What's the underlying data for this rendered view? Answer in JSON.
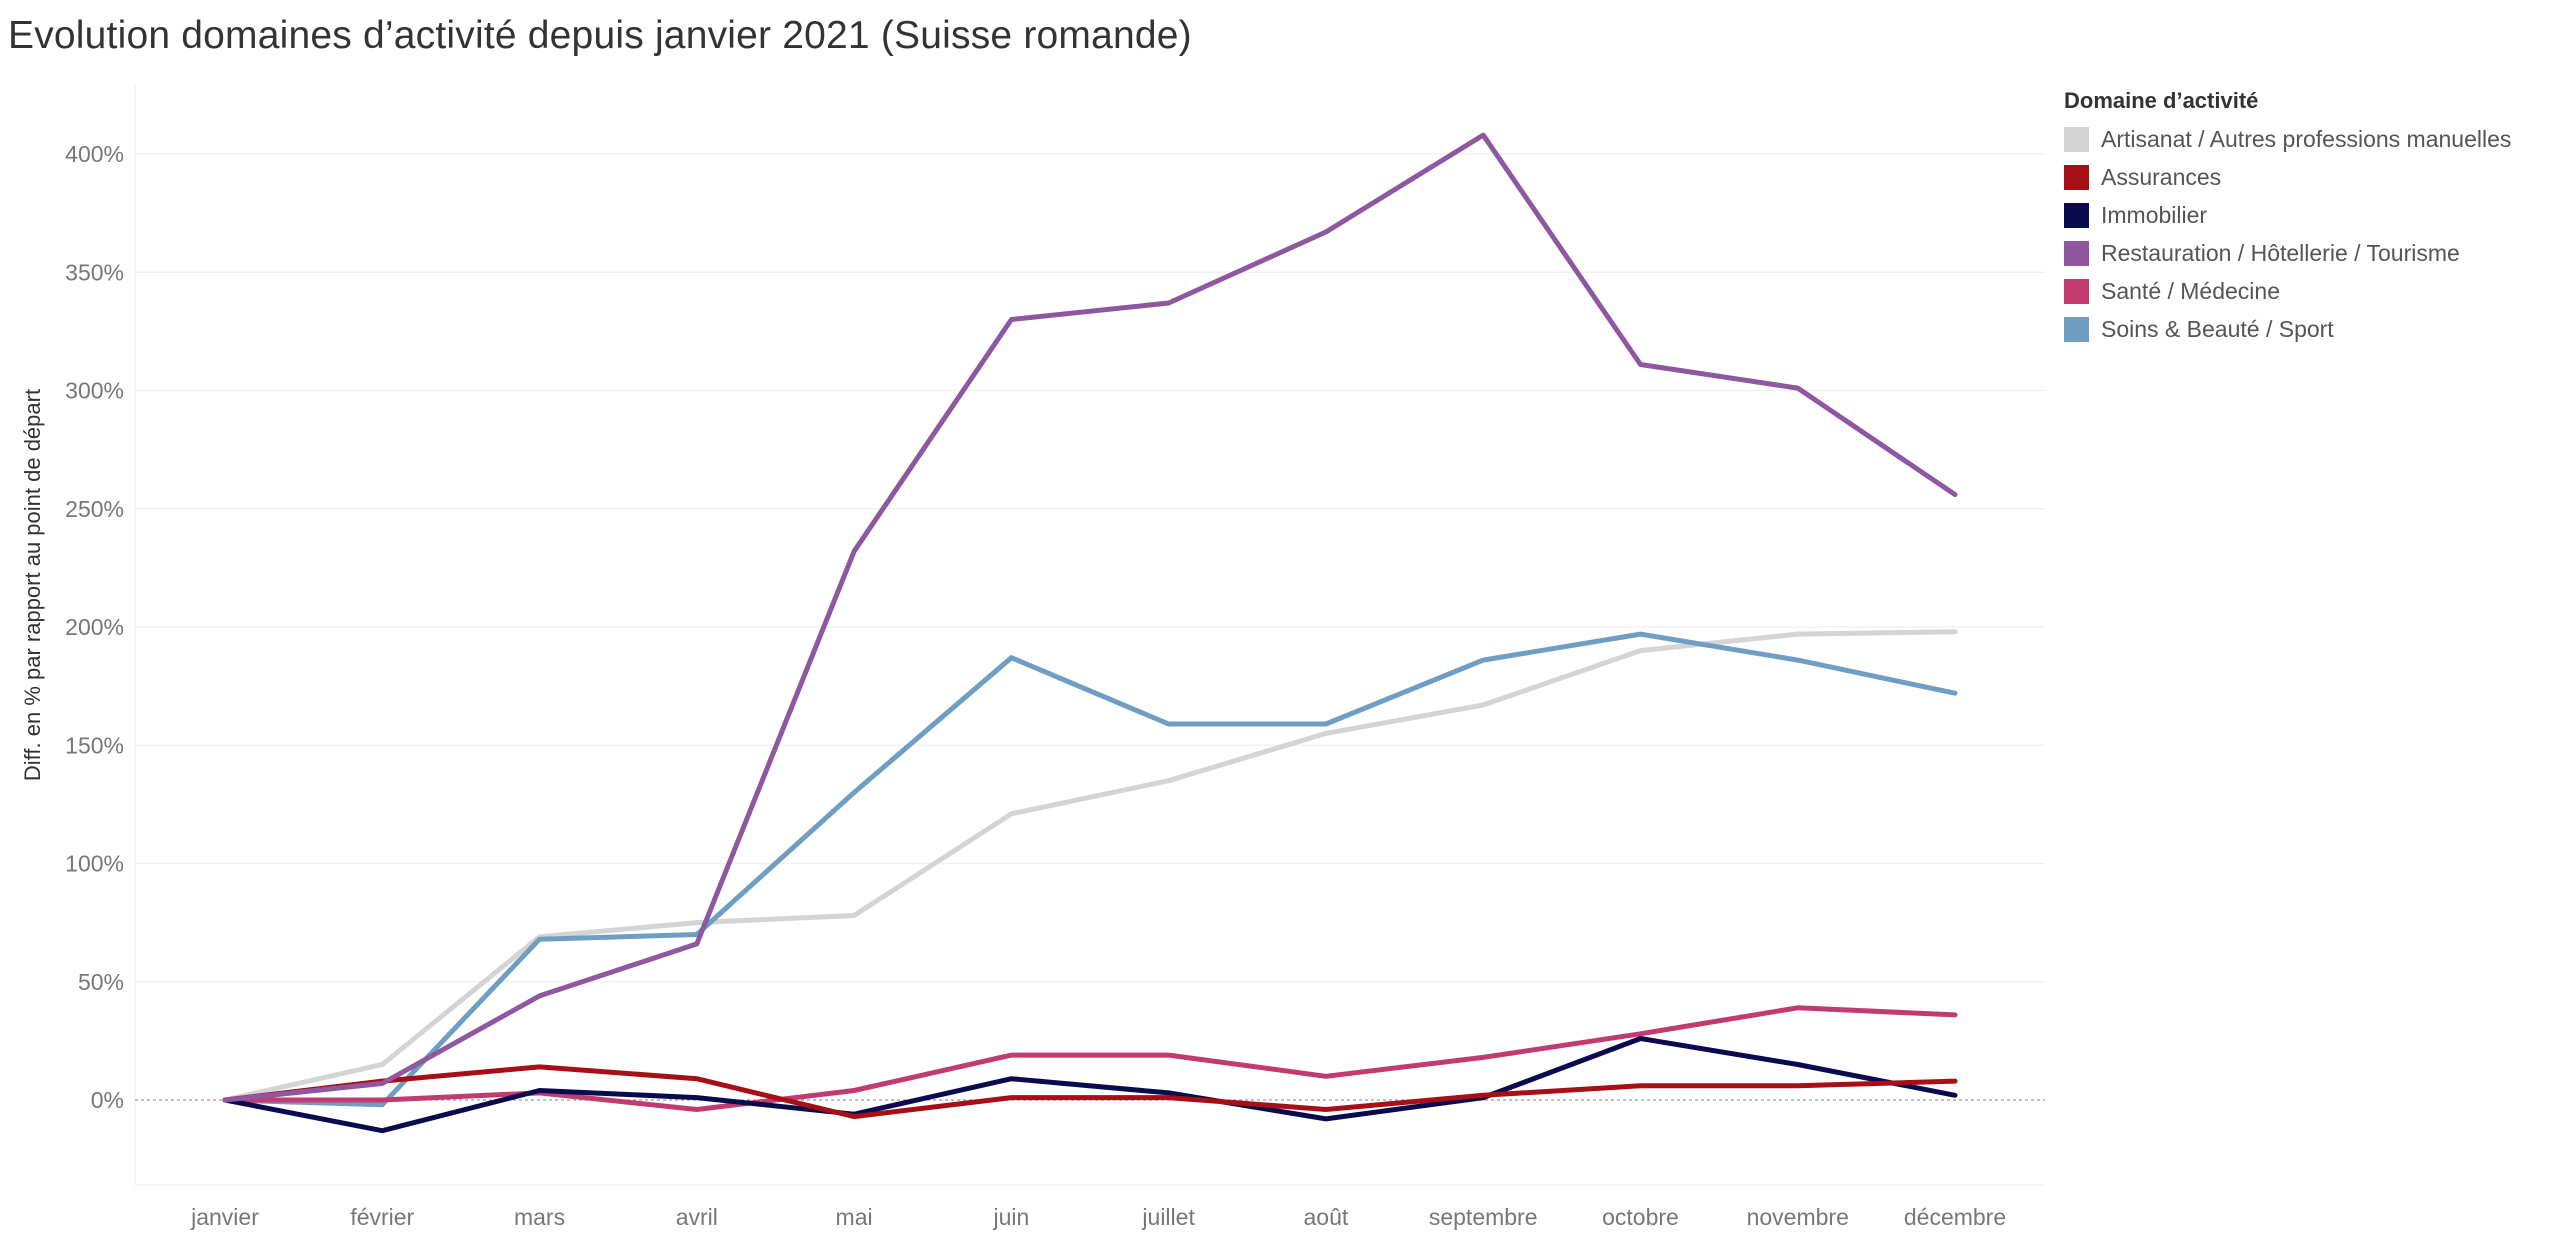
{
  "title": "Evolution domaines d’activité depuis janvier 2021 (Suisse romande)",
  "legend": {
    "title": "Domaine d’activité"
  },
  "chart_data": {
    "type": "line",
    "ylabel": "Diff. en % par rapport au point de départ",
    "xlabel": "",
    "categories": [
      "janvier",
      "février",
      "mars",
      "avril",
      "mai",
      "juin",
      "juillet",
      "août",
      "septembre",
      "octobre",
      "novembre",
      "décembre"
    ],
    "ylim": [
      -35,
      430
    ],
    "yticks": [
      0,
      50,
      100,
      150,
      200,
      250,
      300,
      350,
      400
    ],
    "ytick_labels": [
      "0%",
      "50%",
      "100%",
      "150%",
      "200%",
      "250%",
      "300%",
      "350%",
      "400%"
    ],
    "grid": true,
    "zero_line": "dotted",
    "legend_position": "right",
    "series": [
      {
        "name": "Artisanat / Autres professions manuelles",
        "color": "#d4d4d4",
        "values": [
          0,
          15,
          69,
          75,
          78,
          121,
          135,
          155,
          167,
          190,
          197,
          198
        ]
      },
      {
        "name": "Soins & Beauté / Sport",
        "color": "#6f9ec4",
        "values": [
          0,
          -2,
          68,
          70,
          130,
          187,
          159,
          159,
          186,
          197,
          186,
          172
        ]
      },
      {
        "name": "Santé / Médecine",
        "color": "#c23b6e",
        "values": [
          0,
          0,
          3,
          -4,
          4,
          19,
          19,
          10,
          18,
          28,
          39,
          36
        ]
      },
      {
        "name": "Immobilier",
        "color": "#0a0a4e",
        "values": [
          0,
          -13,
          4,
          1,
          -6,
          9,
          3,
          -8,
          1,
          26,
          15,
          2
        ]
      },
      {
        "name": "Assurances",
        "color": "#a50f15",
        "values": [
          0,
          8,
          14,
          9,
          -7,
          1,
          1,
          -4,
          2,
          6,
          6,
          8
        ]
      },
      {
        "name": "Restauration / Hôtellerie / Tourisme",
        "color": "#8e57a0",
        "values": [
          0,
          7,
          44,
          66,
          232,
          330,
          337,
          367,
          408,
          311,
          301,
          256
        ]
      }
    ],
    "legend_order": [
      "Artisanat / Autres professions manuelles",
      "Assurances",
      "Immobilier",
      "Restauration / Hôtellerie / Tourisme",
      "Santé / Médecine",
      "Soins & Beauté / Sport"
    ]
  }
}
